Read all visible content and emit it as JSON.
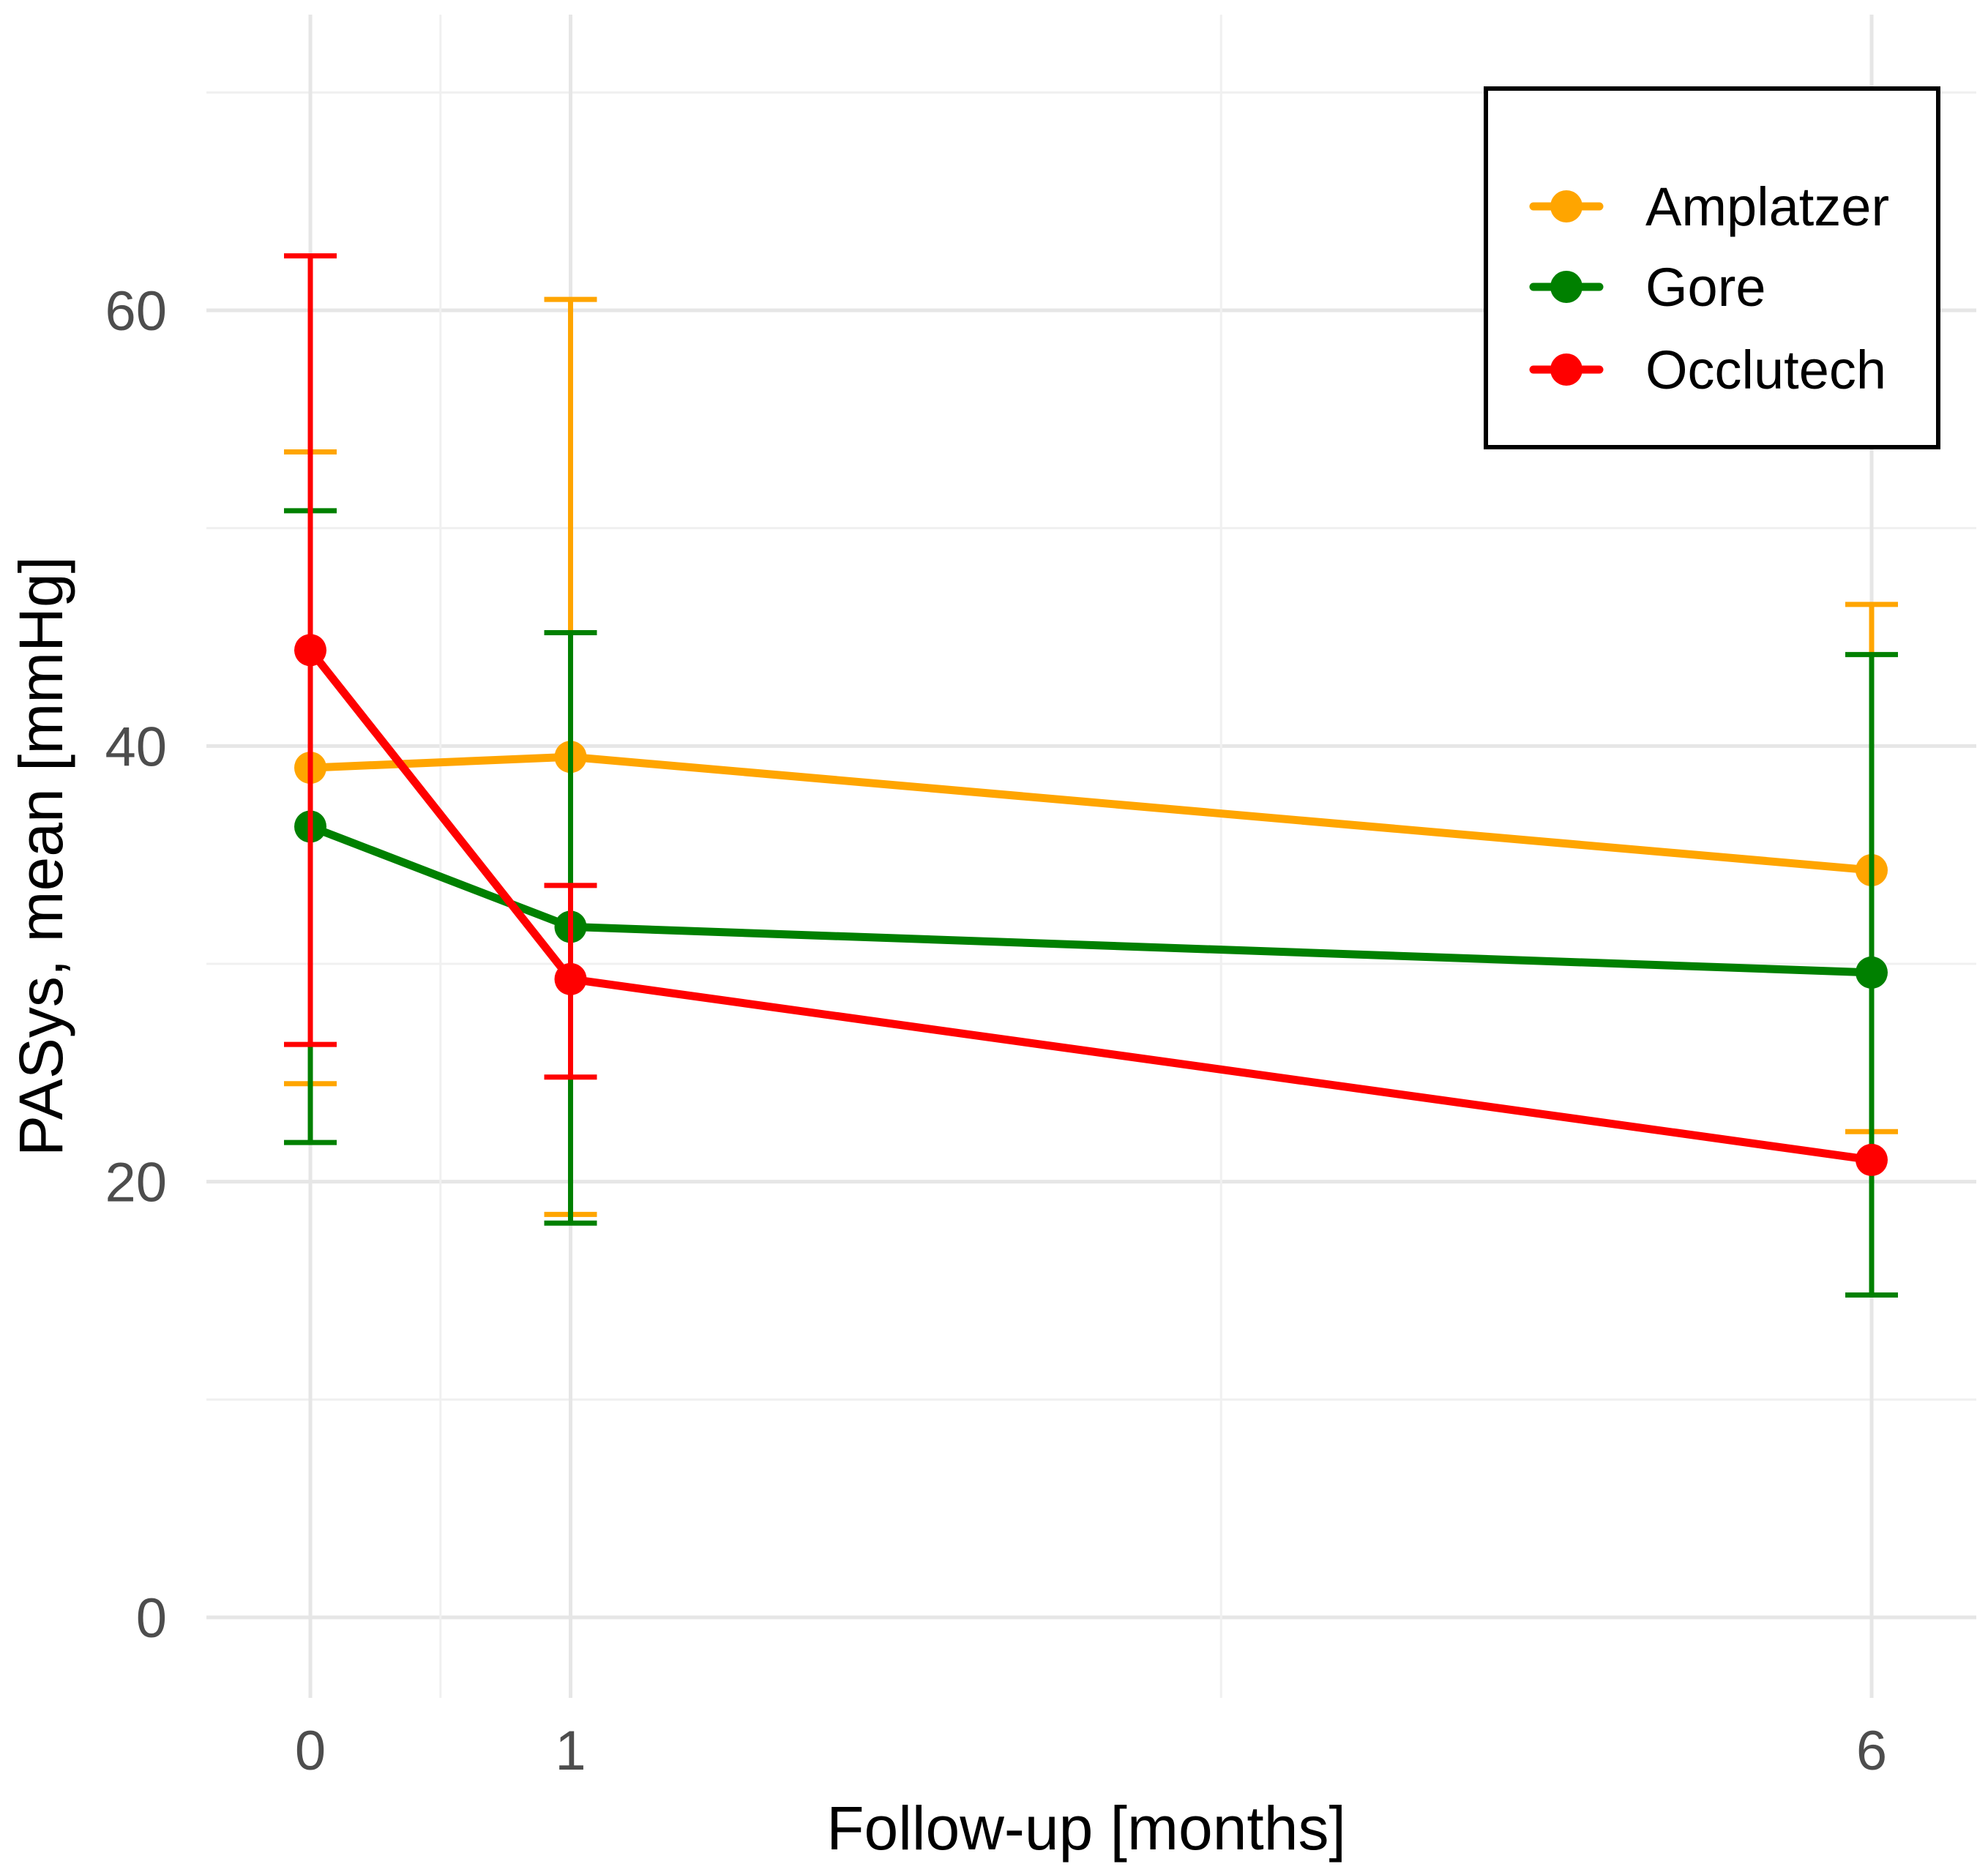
{
  "chart_data": {
    "type": "line",
    "title": "",
    "xlabel": "Follow-up [months]",
    "ylabel": "PASys, mean [mmHg]",
    "x": [
      0,
      1,
      6
    ],
    "x_tick_labels": [
      "0",
      "1",
      "6"
    ],
    "xlim": [
      -0.5,
      6.4
    ],
    "ylim": [
      0,
      70
    ],
    "y_ticks": [
      0,
      20,
      40,
      60
    ],
    "grid": true,
    "legend_position": "top-right",
    "series": [
      {
        "name": "Amplatzer",
        "color": "#FFA500",
        "values": [
          39.0,
          39.5,
          34.3
        ],
        "error_low": [
          24.5,
          18.5,
          22.3
        ],
        "error_high": [
          53.5,
          60.5,
          46.5
        ]
      },
      {
        "name": "Gore",
        "color": "#008000",
        "values": [
          36.3,
          31.7,
          29.6
        ],
        "error_low": [
          21.8,
          18.1,
          14.8
        ],
        "error_high": [
          50.8,
          45.2,
          44.2
        ]
      },
      {
        "name": "Occlutech",
        "color": "#FF0000",
        "values": [
          44.4,
          29.3,
          21.0
        ],
        "error_low": [
          26.3,
          24.8,
          null
        ],
        "error_high": [
          62.5,
          33.6,
          null
        ]
      }
    ]
  }
}
